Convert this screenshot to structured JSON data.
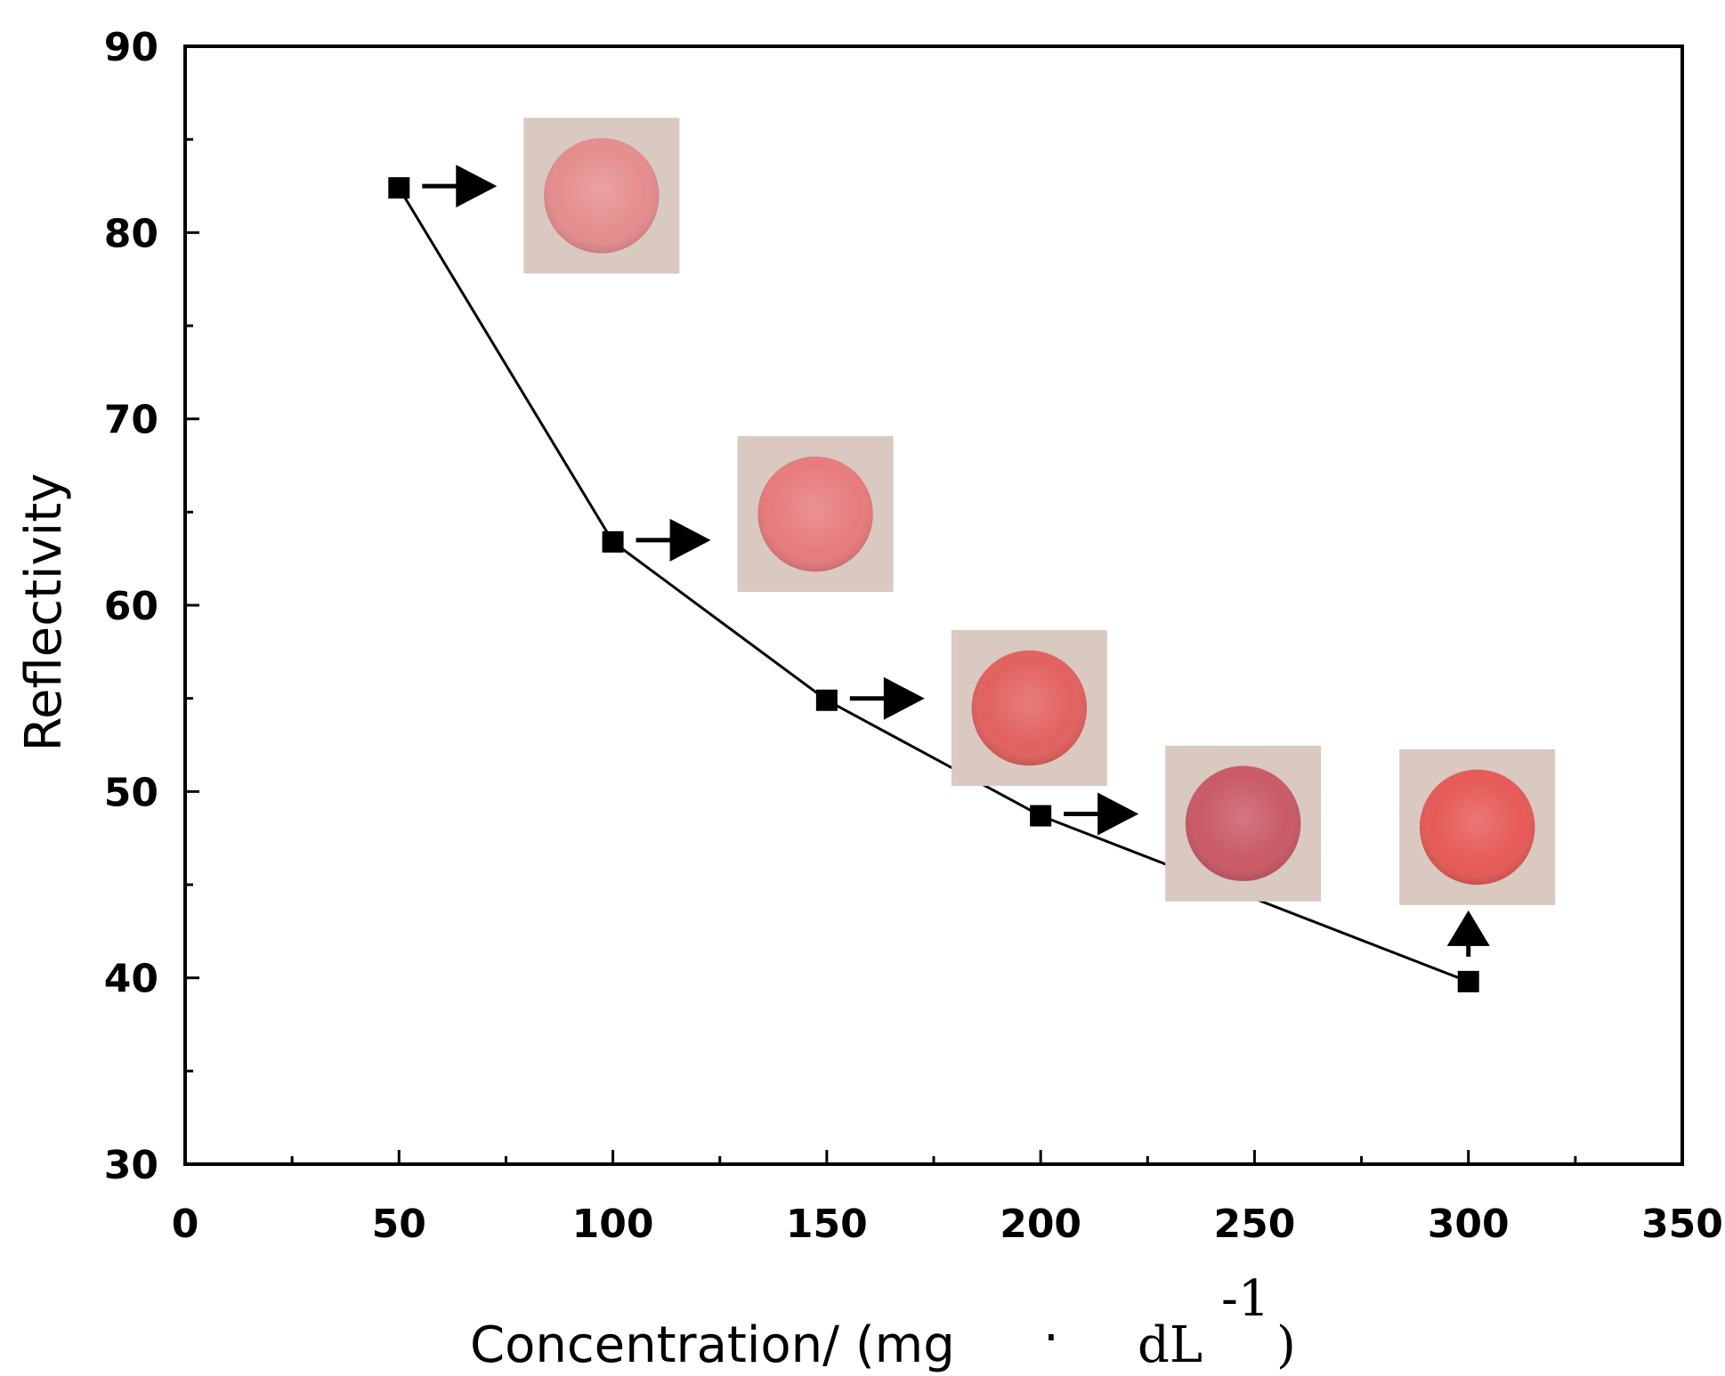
{
  "chart_data": {
    "type": "line",
    "title": "",
    "xlabel": "Concentration/ (mg · dL⁻¹)",
    "xlabel_parts": {
      "main": "Concentration/ (mg",
      "dot": "·",
      "unit": "dL",
      "exponent": "-1",
      "close": ")"
    },
    "ylabel": "Reflectivity",
    "xlim": [
      0,
      350
    ],
    "ylim": [
      30,
      90
    ],
    "xticks": [
      0,
      50,
      100,
      150,
      200,
      250,
      300,
      350
    ],
    "yticks": [
      30,
      40,
      50,
      60,
      70,
      80,
      90
    ],
    "x_minor_step": 25,
    "y_minor_step": 5,
    "grid": false,
    "marker": "square",
    "series": [
      {
        "name": "Reflectivity",
        "x": [
          50,
          100,
          150,
          200,
          300
        ],
        "values": [
          82.4,
          63.4,
          54.9,
          48.7,
          39.8
        ]
      }
    ],
    "annotations": [
      {
        "x": 50,
        "y": 82.4,
        "arrow": "right",
        "label": "photo of test pad (light pink)",
        "color": "#e58d8e"
      },
      {
        "x": 100,
        "y": 63.4,
        "arrow": "right",
        "label": "photo of test pad (pink)",
        "color": "#e77b7c"
      },
      {
        "x": 150,
        "y": 54.9,
        "arrow": "right",
        "label": "photo of test pad (deeper pink)",
        "color": "#e2615f"
      },
      {
        "x": 200,
        "y": 48.7,
        "arrow": "right",
        "label": "photo of test pad (dark rose)",
        "color": "#c95a66"
      },
      {
        "x": 300,
        "y": 39.8,
        "arrow": "up",
        "label": "photo of test pad (red)",
        "color": "#e65a57"
      }
    ]
  },
  "colors": {
    "axis": "#000000",
    "line": "#000000",
    "marker": "#000000",
    "photo_background": "#d9c9c0"
  }
}
